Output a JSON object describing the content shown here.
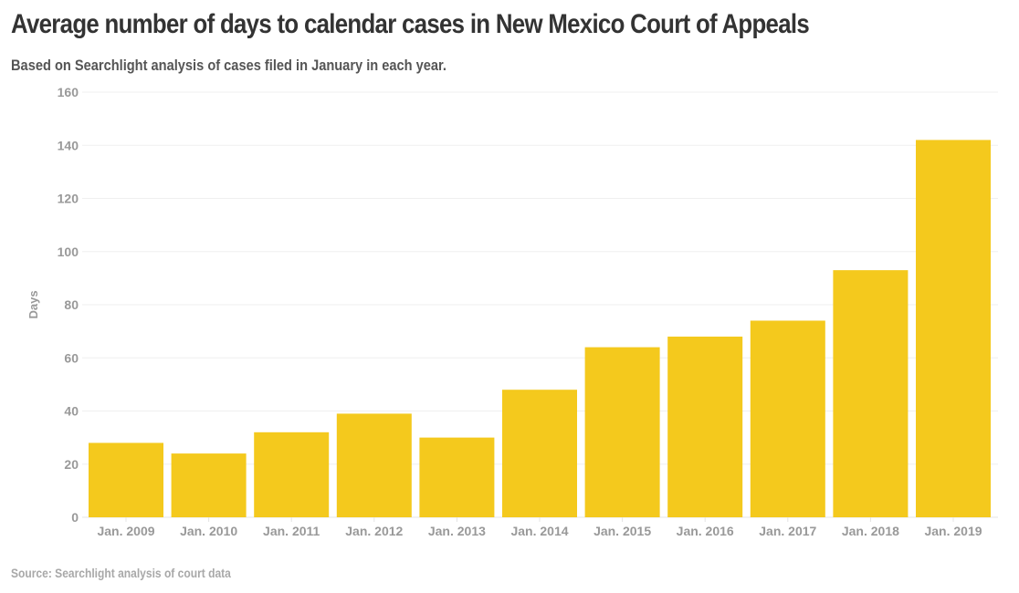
{
  "chart_data": {
    "type": "bar",
    "title": "Average number of days to calendar cases in New Mexico Court of Appeals",
    "subtitle": "Based on Searchlight analysis of cases filed in January in each year.",
    "source": "Source: Searchlight analysis of court data",
    "xlabel": "",
    "ylabel": "Days",
    "ylim": [
      0,
      160
    ],
    "yticks": [
      0,
      20,
      40,
      60,
      80,
      100,
      120,
      140,
      160
    ],
    "grid": true,
    "legend": "none",
    "bar_color": "#f4c91d",
    "categories": [
      "Jan. 2009",
      "Jan. 2010",
      "Jan. 2011",
      "Jan. 2012",
      "Jan. 2013",
      "Jan. 2014",
      "Jan. 2015",
      "Jan. 2016",
      "Jan. 2017",
      "Jan. 2018",
      "Jan. 2019"
    ],
    "values": [
      28,
      24,
      32,
      39,
      30,
      48,
      64,
      68,
      74,
      93,
      142
    ]
  }
}
